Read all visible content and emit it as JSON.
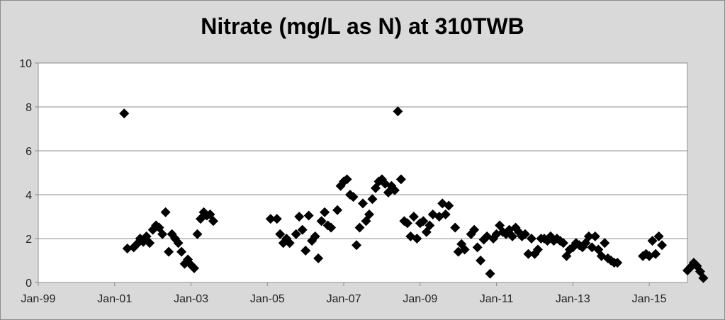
{
  "chart_data": {
    "type": "scatter",
    "title": "Nitrate (mg/L as N) at 310TWB",
    "xlabel": "",
    "ylabel": "",
    "x_axis": {
      "min": "1999-01",
      "max": "2016-01",
      "ticks": [
        "Jan-99",
        "Jan-01",
        "Jan-03",
        "Jan-05",
        "Jan-07",
        "Jan-09",
        "Jan-11",
        "Jan-13",
        "Jan-15"
      ],
      "tick_dates": [
        "1999-01",
        "2001-01",
        "2003-01",
        "2005-01",
        "2007-01",
        "2009-01",
        "2011-01",
        "2013-01",
        "2015-01"
      ]
    },
    "y_axis": {
      "min": 0,
      "max": 10,
      "ticks": [
        0,
        2,
        4,
        6,
        8,
        10
      ]
    },
    "grid": "horizontal",
    "legend": "none",
    "marker": "diamond",
    "marker_color": "#000000",
    "series": [
      {
        "points": [
          [
            "2001-04",
            7.7
          ],
          [
            "2001-05",
            1.55
          ],
          [
            "2001-07",
            1.6
          ],
          [
            "2001-08",
            1.75
          ],
          [
            "2001-09",
            2.0
          ],
          [
            "2001-10",
            1.85
          ],
          [
            "2001-11",
            2.1
          ],
          [
            "2001-12",
            1.8
          ],
          [
            "2002-01",
            2.4
          ],
          [
            "2002-02",
            2.6
          ],
          [
            "2002-03",
            2.5
          ],
          [
            "2002-04",
            2.2
          ],
          [
            "2002-05",
            3.2
          ],
          [
            "2002-06",
            1.4
          ],
          [
            "2002-07",
            2.2
          ],
          [
            "2002-08",
            2.0
          ],
          [
            "2002-09",
            1.8
          ],
          [
            "2002-10",
            1.4
          ],
          [
            "2002-11",
            0.85
          ],
          [
            "2002-12",
            1.05
          ],
          [
            "2003-01",
            0.8
          ],
          [
            "2003-02",
            0.65
          ],
          [
            "2003-03",
            2.2
          ],
          [
            "2003-04",
            2.9
          ],
          [
            "2003-05",
            3.2
          ],
          [
            "2003-06",
            3.05
          ],
          [
            "2003-07",
            3.1
          ],
          [
            "2003-08",
            2.8
          ],
          [
            "2005-02",
            2.9
          ],
          [
            "2005-04",
            2.9
          ],
          [
            "2005-05",
            2.2
          ],
          [
            "2005-06",
            1.8
          ],
          [
            "2005-07",
            2.0
          ],
          [
            "2005-08",
            1.8
          ],
          [
            "2005-10",
            2.2
          ],
          [
            "2005-11",
            3.0
          ],
          [
            "2005-12",
            2.4
          ],
          [
            "2006-01",
            1.45
          ],
          [
            "2006-02",
            3.05
          ],
          [
            "2006-03",
            1.9
          ],
          [
            "2006-04",
            2.1
          ],
          [
            "2006-05",
            1.1
          ],
          [
            "2006-06",
            2.8
          ],
          [
            "2006-07",
            3.2
          ],
          [
            "2006-08",
            2.6
          ],
          [
            "2006-09",
            2.5
          ],
          [
            "2006-11",
            3.3
          ],
          [
            "2006-12",
            4.4
          ],
          [
            "2007-01",
            4.6
          ],
          [
            "2007-02",
            4.7
          ],
          [
            "2007-03",
            4.0
          ],
          [
            "2007-04",
            3.9
          ],
          [
            "2007-05",
            1.7
          ],
          [
            "2007-06",
            2.5
          ],
          [
            "2007-07",
            3.6
          ],
          [
            "2007-08",
            2.8
          ],
          [
            "2007-09",
            3.1
          ],
          [
            "2007-10",
            3.8
          ],
          [
            "2007-11",
            4.3
          ],
          [
            "2007-12",
            4.6
          ],
          [
            "2008-01",
            4.7
          ],
          [
            "2008-02",
            4.5
          ],
          [
            "2008-03",
            4.1
          ],
          [
            "2008-04",
            4.4
          ],
          [
            "2008-05",
            4.2
          ],
          [
            "2008-06",
            7.8
          ],
          [
            "2008-07",
            4.7
          ],
          [
            "2008-08",
            2.8
          ],
          [
            "2008-09",
            2.7
          ],
          [
            "2008-10",
            2.1
          ],
          [
            "2008-11",
            3.0
          ],
          [
            "2008-12",
            2.0
          ],
          [
            "2009-01",
            2.7
          ],
          [
            "2009-02",
            2.8
          ],
          [
            "2009-03",
            2.3
          ],
          [
            "2009-04",
            2.6
          ],
          [
            "2009-05",
            3.1
          ],
          [
            "2009-07",
            3.0
          ],
          [
            "2009-08",
            3.6
          ],
          [
            "2009-09",
            3.1
          ],
          [
            "2009-10",
            3.5
          ],
          [
            "2009-12",
            2.5
          ],
          [
            "2010-01",
            1.4
          ],
          [
            "2010-02",
            1.75
          ],
          [
            "2010-03",
            1.5
          ],
          [
            "2010-05",
            2.2
          ],
          [
            "2010-06",
            2.4
          ],
          [
            "2010-07",
            1.6
          ],
          [
            "2010-08",
            1.0
          ],
          [
            "2010-09",
            1.95
          ],
          [
            "2010-10",
            2.1
          ],
          [
            "2010-11",
            0.4
          ],
          [
            "2010-12",
            2.0
          ],
          [
            "2011-01",
            2.2
          ],
          [
            "2011-02",
            2.6
          ],
          [
            "2011-03",
            2.3
          ],
          [
            "2011-04",
            2.2
          ],
          [
            "2011-05",
            2.4
          ],
          [
            "2011-06",
            2.1
          ],
          [
            "2011-07",
            2.5
          ],
          [
            "2011-08",
            2.3
          ],
          [
            "2011-09",
            2.1
          ],
          [
            "2011-10",
            2.2
          ],
          [
            "2011-11",
            1.3
          ],
          [
            "2011-12",
            2.0
          ],
          [
            "2012-01",
            1.3
          ],
          [
            "2012-02",
            1.5
          ],
          [
            "2012-03",
            2.0
          ],
          [
            "2012-04",
            2.0
          ],
          [
            "2012-05",
            1.9
          ],
          [
            "2012-06",
            2.1
          ],
          [
            "2012-07",
            1.9
          ],
          [
            "2012-08",
            2.0
          ],
          [
            "2012-09",
            1.9
          ],
          [
            "2012-10",
            1.8
          ],
          [
            "2012-11",
            1.2
          ],
          [
            "2012-12",
            1.5
          ],
          [
            "2013-01",
            1.6
          ],
          [
            "2013-02",
            1.8
          ],
          [
            "2013-03",
            1.7
          ],
          [
            "2013-04",
            1.6
          ],
          [
            "2013-05",
            1.8
          ],
          [
            "2013-06",
            2.1
          ],
          [
            "2013-07",
            1.6
          ],
          [
            "2013-08",
            2.1
          ],
          [
            "2013-09",
            1.5
          ],
          [
            "2013-10",
            1.2
          ],
          [
            "2013-11",
            1.8
          ],
          [
            "2013-12",
            1.1
          ],
          [
            "2014-01",
            1.0
          ],
          [
            "2014-02",
            0.9
          ],
          [
            "2014-03",
            0.9
          ],
          [
            "2014-11",
            1.2
          ],
          [
            "2014-12",
            1.3
          ],
          [
            "2015-01",
            1.2
          ],
          [
            "2015-02",
            1.9
          ],
          [
            "2015-03",
            1.3
          ],
          [
            "2015-04",
            2.1
          ],
          [
            "2015-05",
            1.7
          ],
          [
            "2016-01",
            0.55
          ],
          [
            "2016-02",
            0.7
          ],
          [
            "2016-03",
            0.9
          ],
          [
            "2016-04",
            0.75
          ],
          [
            "2016-05",
            0.5
          ],
          [
            "2016-06",
            0.2
          ]
        ]
      }
    ]
  }
}
